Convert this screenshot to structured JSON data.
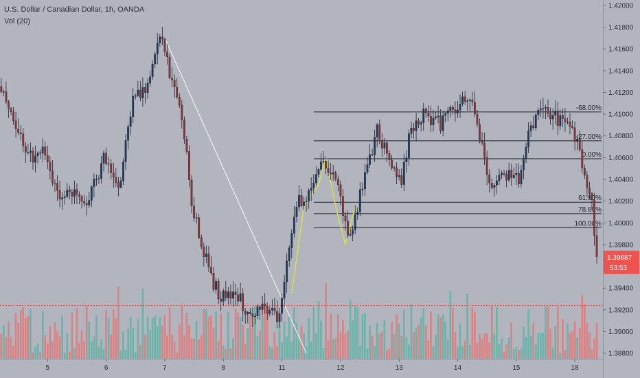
{
  "header": {
    "symbol_line": "U.S. Dollar / Canadian Dollar, 1h, OANDA",
    "indicator_line": "Vol (20)"
  },
  "colors": {
    "background": "#b2b5be",
    "up": "#26a69a",
    "down": "#ef5350",
    "candle_up_body": "#1f3a5a",
    "candle_down_body": "#8a3535",
    "fib_line": "#1e222d",
    "trend_line": "#f0f0f0",
    "zigzag_line": "#d7e04a",
    "price_label_bg": "#ef5350",
    "volume_up": "#5fb3a6",
    "volume_down": "#e17a7a"
  },
  "chart_data": {
    "type": "candlestick",
    "title": "U.S. Dollar / Canadian Dollar, 1h, OANDA",
    "ylim": [
      1.3875,
      1.4205
    ],
    "y_ticks": [
      "1.42000",
      "1.41800",
      "1.41600",
      "1.41400",
      "1.41200",
      "1.41000",
      "1.40800",
      "1.40600",
      "1.40400",
      "1.40200",
      "1.40000",
      "1.39800",
      "1.39600",
      "1.39400",
      "1.39200",
      "1.39000",
      "1.38800"
    ],
    "x_ticks": [
      {
        "label": "5",
        "hour": 19
      },
      {
        "label": "6",
        "hour": 43
      },
      {
        "label": "7",
        "hour": 67
      },
      {
        "label": "8",
        "hour": 91
      },
      {
        "label": "11",
        "hour": 115
      },
      {
        "label": "12",
        "hour": 139
      },
      {
        "label": "13",
        "hour": 163
      },
      {
        "label": "14",
        "hour": 187
      },
      {
        "label": "15",
        "hour": 211
      },
      {
        "label": "18",
        "hour": 235
      }
    ],
    "keypoints": [
      [
        0,
        1.412
      ],
      [
        6,
        1.409
      ],
      [
        12,
        1.406
      ],
      [
        18,
        1.4065
      ],
      [
        24,
        1.402
      ],
      [
        30,
        1.403
      ],
      [
        36,
        1.402
      ],
      [
        42,
        1.406
      ],
      [
        48,
        1.403
      ],
      [
        54,
        1.411
      ],
      [
        60,
        1.413
      ],
      [
        64,
        1.4165
      ],
      [
        66,
        1.417
      ],
      [
        70,
        1.413
      ],
      [
        74,
        1.41
      ],
      [
        78,
        1.402
      ],
      [
        82,
        1.398
      ],
      [
        86,
        1.395
      ],
      [
        90,
        1.393
      ],
      [
        96,
        1.3935
      ],
      [
        102,
        1.3915
      ],
      [
        108,
        1.3925
      ],
      [
        114,
        1.3912
      ],
      [
        118,
        1.3975
      ],
      [
        121,
        1.402
      ],
      [
        126,
        1.4025
      ],
      [
        132,
        1.406
      ],
      [
        138,
        1.403
      ],
      [
        142,
        1.3985
      ],
      [
        146,
        1.4015
      ],
      [
        150,
        1.405
      ],
      [
        154,
        1.4085
      ],
      [
        160,
        1.405
      ],
      [
        164,
        1.404
      ],
      [
        168,
        1.409
      ],
      [
        174,
        1.41
      ],
      [
        180,
        1.409
      ],
      [
        186,
        1.4105
      ],
      [
        192,
        1.4115
      ],
      [
        196,
        1.408
      ],
      [
        200,
        1.4035
      ],
      [
        206,
        1.4045
      ],
      [
        212,
        1.404
      ],
      [
        216,
        1.408
      ],
      [
        222,
        1.411
      ],
      [
        228,
        1.4095
      ],
      [
        234,
        1.4085
      ],
      [
        239,
        1.405
      ],
      [
        242,
        1.4015
      ],
      [
        244,
        1.3975
      ]
    ],
    "last_price": "1.39687",
    "countdown": "53:53",
    "fib_levels": [
      {
        "label": "-68.00%",
        "price": 1.4102
      },
      {
        "label": "-27.00%",
        "price": 1.40755
      },
      {
        "label": "0.00%",
        "price": 1.4059
      },
      {
        "label": "61.80%",
        "price": 1.4019
      },
      {
        "label": "78.60%",
        "price": 1.40085
      },
      {
        "label": "100.00%",
        "price": 1.39955
      }
    ],
    "fib_start_hour": 128,
    "trend_line": {
      "from": [
        67,
        1.417
      ],
      "to": [
        125,
        1.388
      ]
    },
    "zigzag": [
      [
        119,
        1.3935
      ],
      [
        124,
        1.4015
      ],
      [
        130,
        1.4035
      ],
      [
        133,
        1.406
      ],
      [
        137,
        1.4015
      ],
      [
        141,
        1.398
      ],
      [
        145,
        1.4015
      ]
    ],
    "volume_reference_price_level": 1.3924
  }
}
